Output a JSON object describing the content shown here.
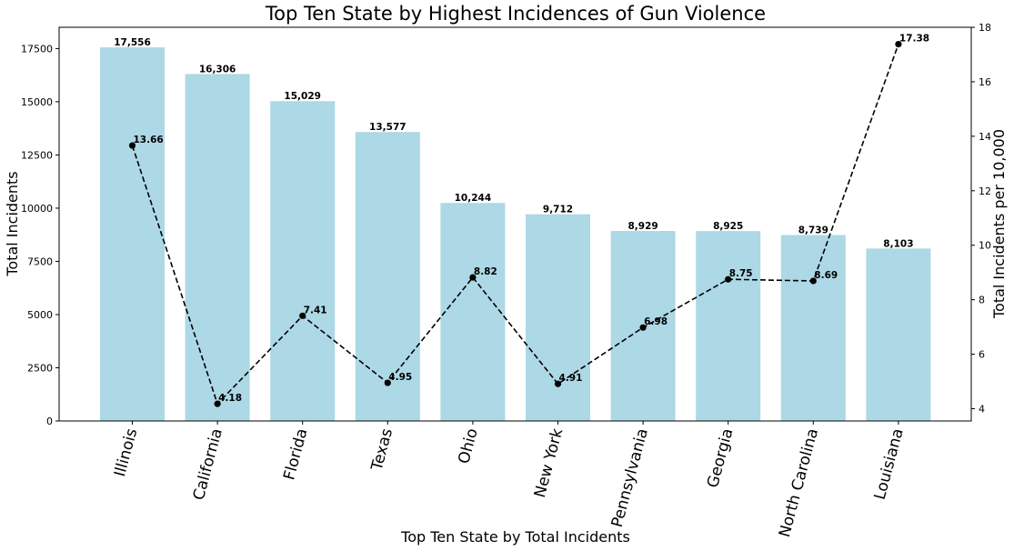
{
  "chart_data": {
    "type": "bar",
    "title": "Top Ten State by Highest Incidences of Gun Violence",
    "xlabel": "Top Ten State by Total Incidents",
    "ylabel": "Total Incidents",
    "y2label": "Total Incidents per 10,000",
    "categories": [
      "Illinois",
      "California",
      "Florida",
      "Texas",
      "Ohio",
      "New York",
      "Pennsylvania",
      "Georgia",
      "North Carolina",
      "Louisiana"
    ],
    "series": [
      {
        "type": "bar",
        "axis": "left",
        "color": "#add8e6",
        "values": [
          17556,
          16306,
          15029,
          13577,
          10244,
          9712,
          8929,
          8925,
          8739,
          8103
        ],
        "labels": [
          "17,556",
          "16,306",
          "15,029",
          "13,577",
          "10,244",
          "9,712",
          "8,929",
          "8,925",
          "8,739",
          "8,103"
        ]
      },
      {
        "type": "line",
        "axis": "right",
        "style": "dashed",
        "marker": "circle",
        "color": "#000000",
        "values": [
          13.66,
          4.18,
          7.41,
          4.95,
          8.82,
          4.91,
          6.98,
          8.75,
          8.69,
          17.38
        ],
        "labels": [
          "13.66",
          "4.18",
          "7.41",
          "4.95",
          "8.82",
          "4.91",
          "6.98",
          "8.75",
          "8.69",
          "17.38"
        ]
      }
    ],
    "ylim": [
      0,
      18500
    ],
    "yticks": [
      0,
      2500,
      5000,
      7500,
      10000,
      12500,
      15000,
      17500
    ],
    "y2lim": [
      3.55,
      18
    ],
    "y2ticks": [
      4,
      6,
      8,
      10,
      12,
      14,
      16,
      18
    ],
    "grid": false,
    "legend": "none"
  }
}
